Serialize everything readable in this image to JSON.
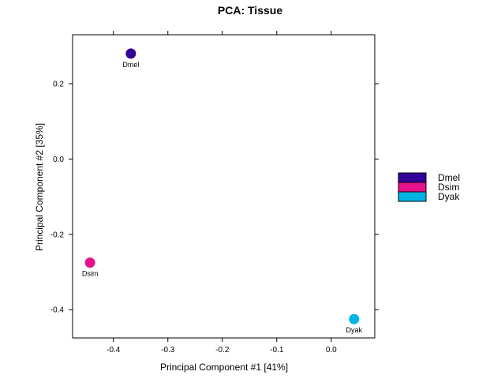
{
  "chart_data": {
    "type": "scatter",
    "title": "PCA: Tissue",
    "xlabel": "Principal Component #1 [41%]",
    "ylabel": "Principal Component #2 [35%]",
    "xlim": [
      -0.475,
      0.08
    ],
    "ylim": [
      -0.475,
      0.33
    ],
    "xticks": [
      -0.4,
      -0.3,
      -0.2,
      -0.1,
      0.0
    ],
    "xtick_labels": [
      "-0.4",
      "-0.3",
      "-0.2",
      "-0.1",
      "0.0"
    ],
    "yticks": [
      0.2,
      0.0,
      -0.2,
      -0.4
    ],
    "ytick_labels": [
      "0.2",
      "0.0",
      "-0.2",
      "-0.4"
    ],
    "grid": false,
    "legend_position": "right",
    "series": [
      {
        "name": "Dmel",
        "color": "#330099",
        "points": [
          {
            "x": -0.368,
            "y": 0.28,
            "label": "Dmel"
          }
        ]
      },
      {
        "name": "Dsim",
        "color": "#e6128c",
        "points": [
          {
            "x": -0.443,
            "y": -0.275,
            "label": "Dsim"
          }
        ]
      },
      {
        "name": "Dyak",
        "color": "#00b4e6",
        "points": [
          {
            "x": 0.042,
            "y": -0.425,
            "label": "Dyak"
          }
        ]
      }
    ]
  }
}
